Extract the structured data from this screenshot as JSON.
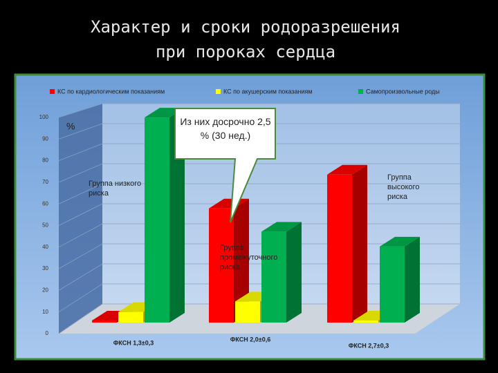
{
  "chart_data": {
    "type": "bar3d",
    "title": [
      "Характер и сроки родоразрешения",
      "при пороках сердца"
    ],
    "categories": [
      "ФКСН 1,3±0,3",
      "ФКСН 2,0±0,6",
      "ФКСН 2,7±0,3"
    ],
    "series": [
      {
        "name": "КС по кардиологическим показаниям",
        "color": "#ff0000",
        "values": [
          1,
          54,
          70
        ]
      },
      {
        "name": "КС по акушерским показаниям",
        "color": "#ffff00",
        "values": [
          5,
          10,
          1
        ]
      },
      {
        "name": "Самопроизвольные роды",
        "color": "#00b050",
        "values": [
          97,
          43,
          36
        ]
      }
    ],
    "ylim": [
      0,
      100
    ],
    "yticks": [
      0,
      10,
      20,
      30,
      40,
      50,
      60,
      70,
      80,
      90,
      100
    ],
    "grid": true,
    "legend": "top",
    "y_unit": "%",
    "annotations": [
      "Группа низкого риска",
      "Группа промежуточного риска",
      "Группа высокого риска"
    ],
    "callout": "Из них досрочно 2,5 % (30 нед.)"
  }
}
